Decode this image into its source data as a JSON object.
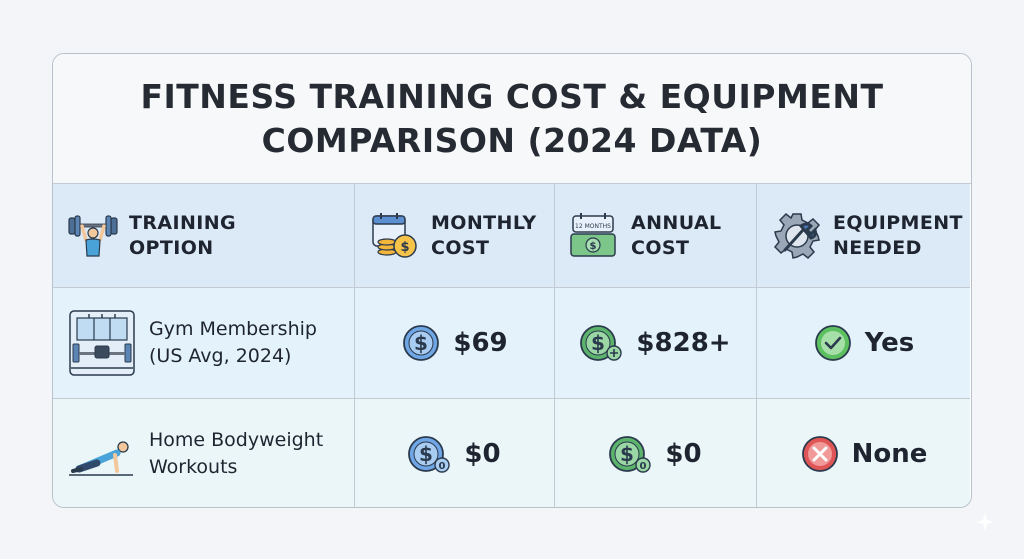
{
  "title": {
    "line1": "FITNESS TRAINING COST & EQUIPMENT",
    "line2": "COMPARISON  (2024 DATA)"
  },
  "headers": [
    {
      "label": "TRAINING OPTION",
      "icon": "weightlifter-icon"
    },
    {
      "label": "MONTHLY COST",
      "icon": "calendar-coins-icon"
    },
    {
      "label": "ANNUAL COST",
      "icon": "calendar-cash-icon",
      "icon_text": "12 MONTHS"
    },
    {
      "label": "EQUIPMENT NEEDED",
      "icon": "gear-wrench-icon"
    }
  ],
  "rows": [
    {
      "option": "Gym Membership (US Avg, 2024)",
      "option_icon": "gym-interior-icon",
      "monthly": "$69",
      "monthly_icon": "dollar-coin-icon",
      "annual": "$828+",
      "annual_icon": "dollar-coin-plus-icon",
      "equipment": "Yes",
      "equipment_icon": "check-circle-icon"
    },
    {
      "option": "Home Bodyweight Workouts",
      "option_icon": "pushup-person-icon",
      "monthly": "$0",
      "monthly_icon": "dollar-coin-zero-icon",
      "annual": "$0",
      "annual_icon": "dollar-coin-zero-icon",
      "equipment": "None",
      "equipment_icon": "x-circle-icon"
    }
  ],
  "colors": {
    "header_bg": "#dceaf7",
    "row1_bg": "#e3f2fb",
    "row2_bg": "#eaf6f8",
    "check_green": "#4caf50",
    "cross_red": "#e05555",
    "coin_blue": "#6fa6e6",
    "coin_green": "#5bb36c"
  }
}
